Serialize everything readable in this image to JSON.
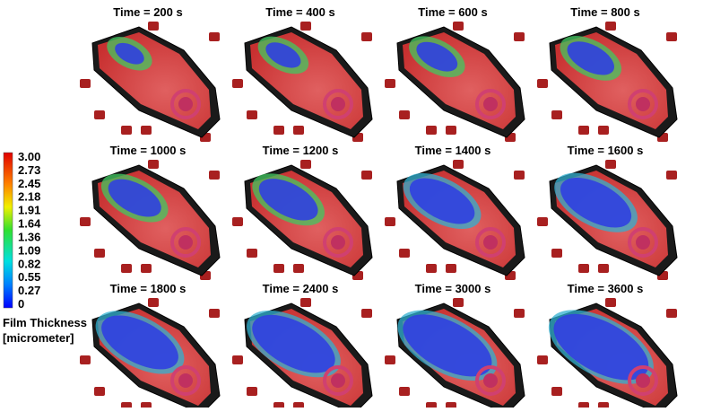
{
  "panels": [
    {
      "title": "Time = 200 s"
    },
    {
      "title": "Time = 400 s"
    },
    {
      "title": "Time = 600 s"
    },
    {
      "title": "Time = 800 s"
    },
    {
      "title": "Time = 1000 s"
    },
    {
      "title": "Time = 1200 s"
    },
    {
      "title": "Time = 1400 s"
    },
    {
      "title": "Time = 1600 s"
    },
    {
      "title": "Time = 1800 s"
    },
    {
      "title": "Time = 2400 s"
    },
    {
      "title": "Time = 3000 s"
    },
    {
      "title": "Time = 3600 s"
    }
  ],
  "colorbar": {
    "ticks": [
      "3.00",
      "2.73",
      "2.45",
      "2.18",
      "1.91",
      "1.64",
      "1.36",
      "1.09",
      "0.82",
      "0.55",
      "0.27",
      "0"
    ],
    "title": [
      "Film Thickness",
      "[micrometer]"
    ]
  }
}
